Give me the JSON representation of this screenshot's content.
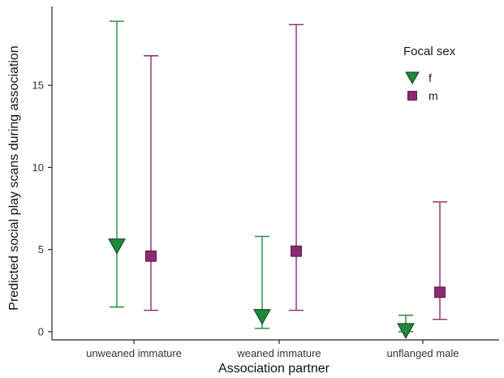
{
  "chart_data": {
    "type": "scatter",
    "subtype": "point-with-error-bars",
    "title": "",
    "xlabel": "Association partner",
    "ylabel": "Predicted social play scans during association",
    "categories": [
      "unweaned immature",
      "weaned immature",
      "unflanged male"
    ],
    "ylim": [
      -0.5,
      19.8
    ],
    "yticks": [
      0,
      5,
      10,
      15
    ],
    "grid": false,
    "legend": {
      "title": "Focal sex",
      "placement": "top-right"
    },
    "series": [
      {
        "name": "f",
        "color": "#1e8a3c",
        "marker": "triangle-down",
        "values": [
          5.2,
          0.9,
          0.05
        ],
        "lower": [
          1.5,
          0.2,
          0.0
        ],
        "upper": [
          18.9,
          5.8,
          1.0
        ]
      },
      {
        "name": "m",
        "color": "#8e2a72",
        "marker": "square",
        "values": [
          4.6,
          4.9,
          2.4
        ],
        "lower": [
          1.3,
          1.3,
          0.75
        ],
        "upper": [
          16.8,
          18.7,
          7.9
        ]
      }
    ]
  }
}
